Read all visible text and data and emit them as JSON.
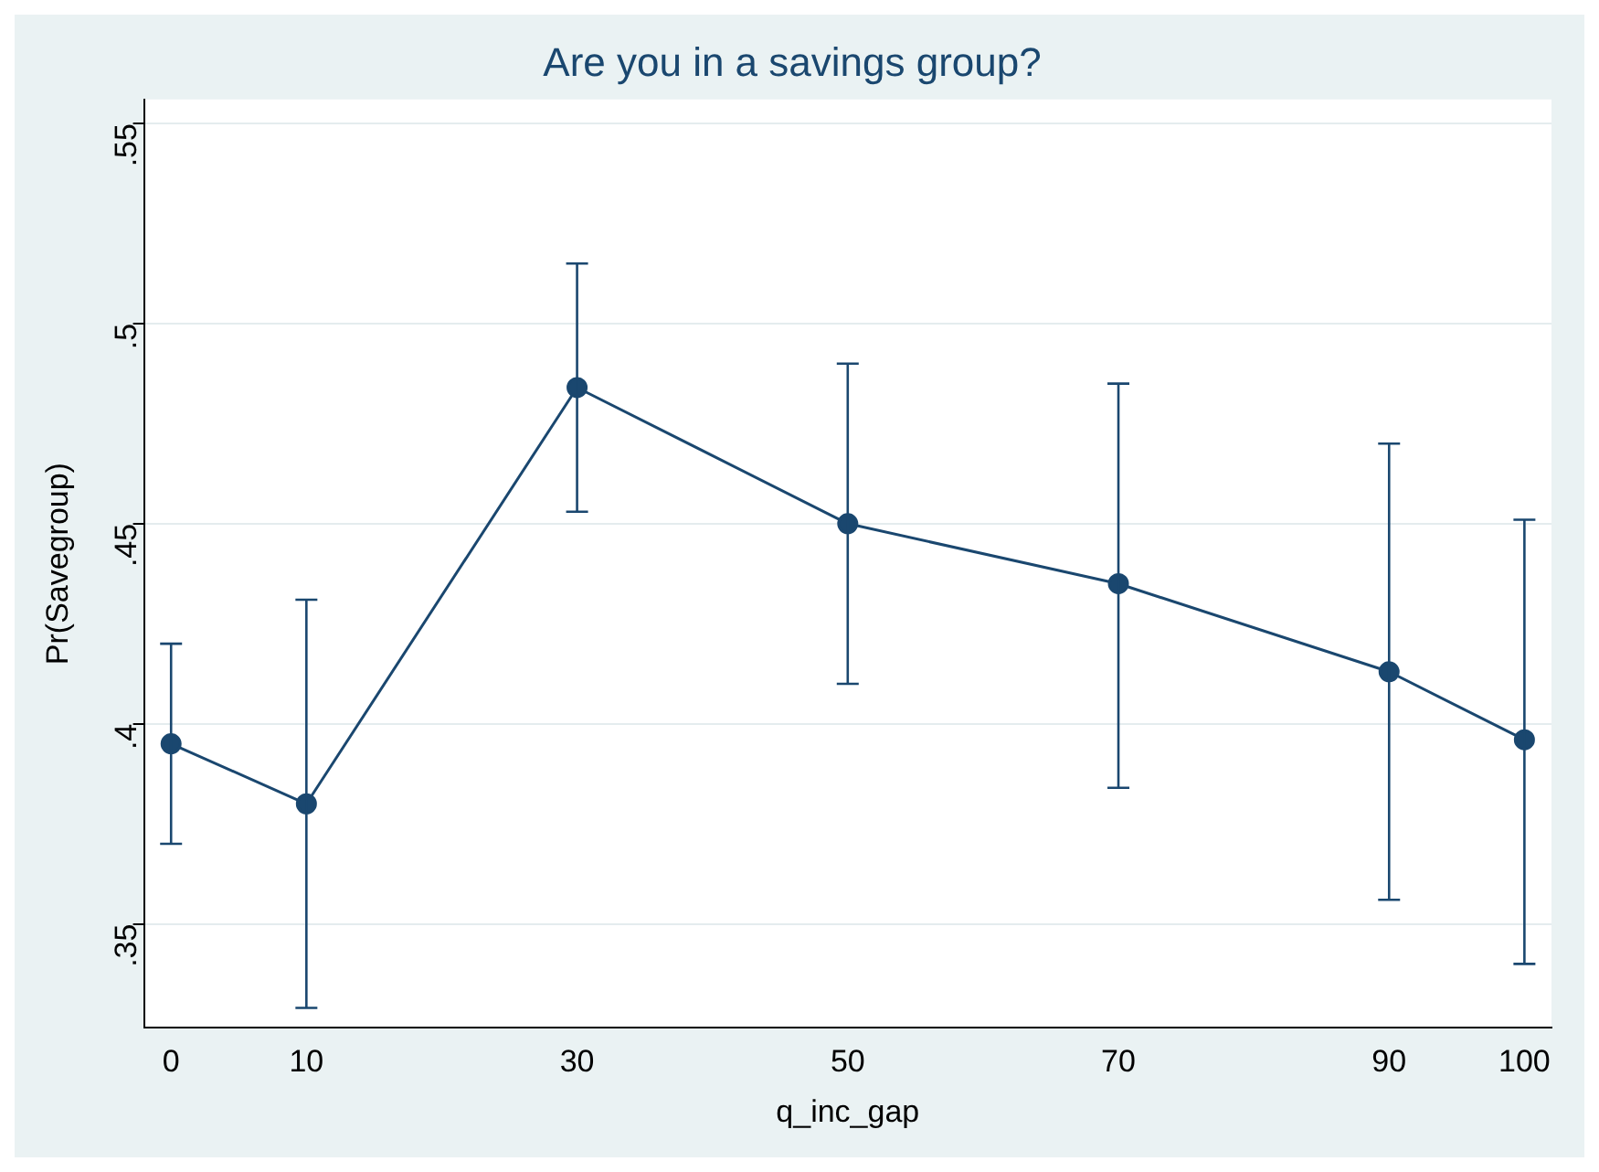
{
  "chart_data": {
    "type": "line",
    "title": "Are you in a savings group?",
    "xlabel": "q_inc_gap",
    "ylabel": "Pr(Savegroup)",
    "x": [
      0,
      10,
      30,
      50,
      70,
      90,
      100
    ],
    "series": [
      {
        "color": "#1a476f",
        "values": [
          0.395,
          0.38,
          0.484,
          0.45,
          0.435,
          0.413,
          0.396
        ],
        "errors": [
          [
            0.37,
            0.42
          ],
          [
            0.329,
            0.431
          ],
          [
            0.453,
            0.515
          ],
          [
            0.41,
            0.49
          ],
          [
            0.384,
            0.485
          ],
          [
            0.356,
            0.47
          ],
          [
            0.34,
            0.451
          ]
        ]
      }
    ],
    "xlim": [
      -2,
      102
    ],
    "xticks": [
      0,
      10,
      30,
      50,
      70,
      90,
      100
    ],
    "ylim": [
      0.324,
      0.556
    ],
    "yticks": [
      {
        "value": 0.35,
        "label": ".35"
      },
      {
        "value": 0.4,
        "label": ".4"
      },
      {
        "value": 0.45,
        "label": ".45"
      },
      {
        "value": 0.5,
        "label": ".5"
      },
      {
        "value": 0.55,
        "label": ".55"
      }
    ],
    "grid": "y",
    "marker": "circle",
    "line_style": "solid",
    "legend": false
  }
}
